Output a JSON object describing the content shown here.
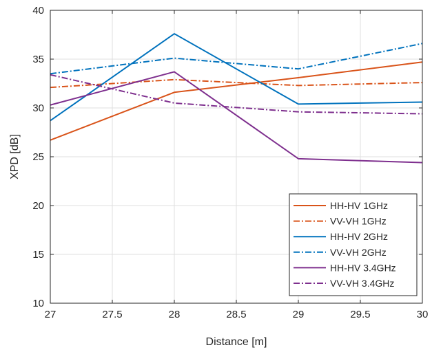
{
  "chart_data": {
    "type": "line",
    "title": "",
    "xlabel": "Distance [m]",
    "ylabel": "XPD [dB]",
    "xlim": [
      27,
      30
    ],
    "ylim": [
      10,
      40
    ],
    "xticks": [
      "27",
      "27.5",
      "28",
      "28.5",
      "29",
      "29.5",
      "30"
    ],
    "yticks": [
      "10",
      "15",
      "20",
      "25",
      "30",
      "35",
      "40"
    ],
    "grid": true,
    "legend_position": "bottom-right",
    "x": [
      27,
      28,
      29,
      30
    ],
    "series": [
      {
        "name": "HH-HV 1GHz",
        "values": [
          26.7,
          31.6,
          33.1,
          34.7
        ],
        "color": "#D95319",
        "style": "solid"
      },
      {
        "name": "VV-VH 1GHz",
        "values": [
          32.1,
          32.9,
          32.3,
          32.6
        ],
        "color": "#D95319",
        "style": "dashdot"
      },
      {
        "name": "HH-HV 2GHz",
        "values": [
          28.7,
          37.6,
          30.4,
          30.6
        ],
        "color": "#0072BD",
        "style": "solid"
      },
      {
        "name": "VV-VH 2GHz",
        "values": [
          33.5,
          35.1,
          34.0,
          36.6
        ],
        "color": "#0072BD",
        "style": "dashdot"
      },
      {
        "name": "HH-HV 3.4GHz",
        "values": [
          30.3,
          33.7,
          24.8,
          24.4
        ],
        "color": "#7E2F8E",
        "style": "solid"
      },
      {
        "name": "VV-VH 3.4GHz",
        "values": [
          33.4,
          30.5,
          29.6,
          29.4
        ],
        "color": "#7E2F8E",
        "style": "dashdot"
      }
    ]
  }
}
